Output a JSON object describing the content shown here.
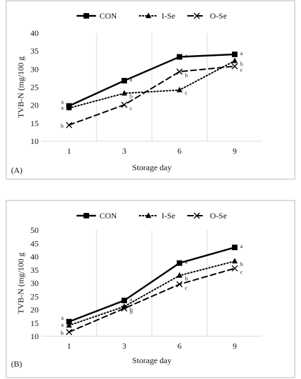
{
  "figure": {
    "series_styles": {
      "CON": {
        "color": "#000000",
        "dash": "",
        "marker": "square",
        "width": 2.5
      },
      "I-Se": {
        "color": "#000000",
        "dash": "1.5 3",
        "marker": "triangle",
        "width": 2
      },
      "O-Se": {
        "color": "#000000",
        "dash": "8 5",
        "marker": "x",
        "width": 2
      }
    }
  },
  "chart_data": [
    {
      "panel": "(A)",
      "type": "line",
      "categories": [
        "1",
        "3",
        "6",
        "9"
      ],
      "ylabel": "TVB-N (mg/100 g",
      "xlabel": "Storage day",
      "ylim": [
        10,
        40
      ],
      "yticks": [
        10,
        15,
        20,
        25,
        30,
        35,
        40
      ],
      "grid": "vertical",
      "legend": "top-left",
      "series": [
        {
          "name": "CON",
          "values": [
            19.8,
            26.8,
            33.4,
            34.1
          ],
          "labels": [
            "a",
            "a",
            "a",
            "a"
          ]
        },
        {
          "name": "I-Se",
          "values": [
            19.2,
            23.3,
            24.2,
            32.3
          ],
          "labels": [
            "a",
            "b",
            "c",
            "b"
          ]
        },
        {
          "name": "O-Se",
          "values": [
            14.5,
            20.1,
            29.3,
            30.8
          ],
          "labels": [
            "b",
            "c",
            "b",
            "c"
          ]
        }
      ]
    },
    {
      "panel": "(B)",
      "type": "line",
      "categories": [
        "1",
        "3",
        "6",
        "9"
      ],
      "ylabel": "TVB-N (mg/100 g",
      "xlabel": "Storage day",
      "ylim": [
        10,
        50
      ],
      "yticks": [
        10,
        15,
        20,
        25,
        30,
        35,
        40,
        45,
        50
      ],
      "grid": "vertical",
      "legend": "top-left",
      "series": [
        {
          "name": "CON",
          "values": [
            15.5,
            23.5,
            37.6,
            43.5
          ],
          "labels": [
            "a",
            "a",
            "a",
            "a"
          ]
        },
        {
          "name": "I-Se",
          "values": [
            14.1,
            21.2,
            32.9,
            38.3
          ],
          "labels": [
            "a",
            "b",
            "b",
            "b"
          ]
        },
        {
          "name": "O-Se",
          "values": [
            11.6,
            20.5,
            29.6,
            35.6
          ],
          "labels": [
            "b",
            "b",
            "c",
            "c"
          ]
        }
      ]
    }
  ]
}
